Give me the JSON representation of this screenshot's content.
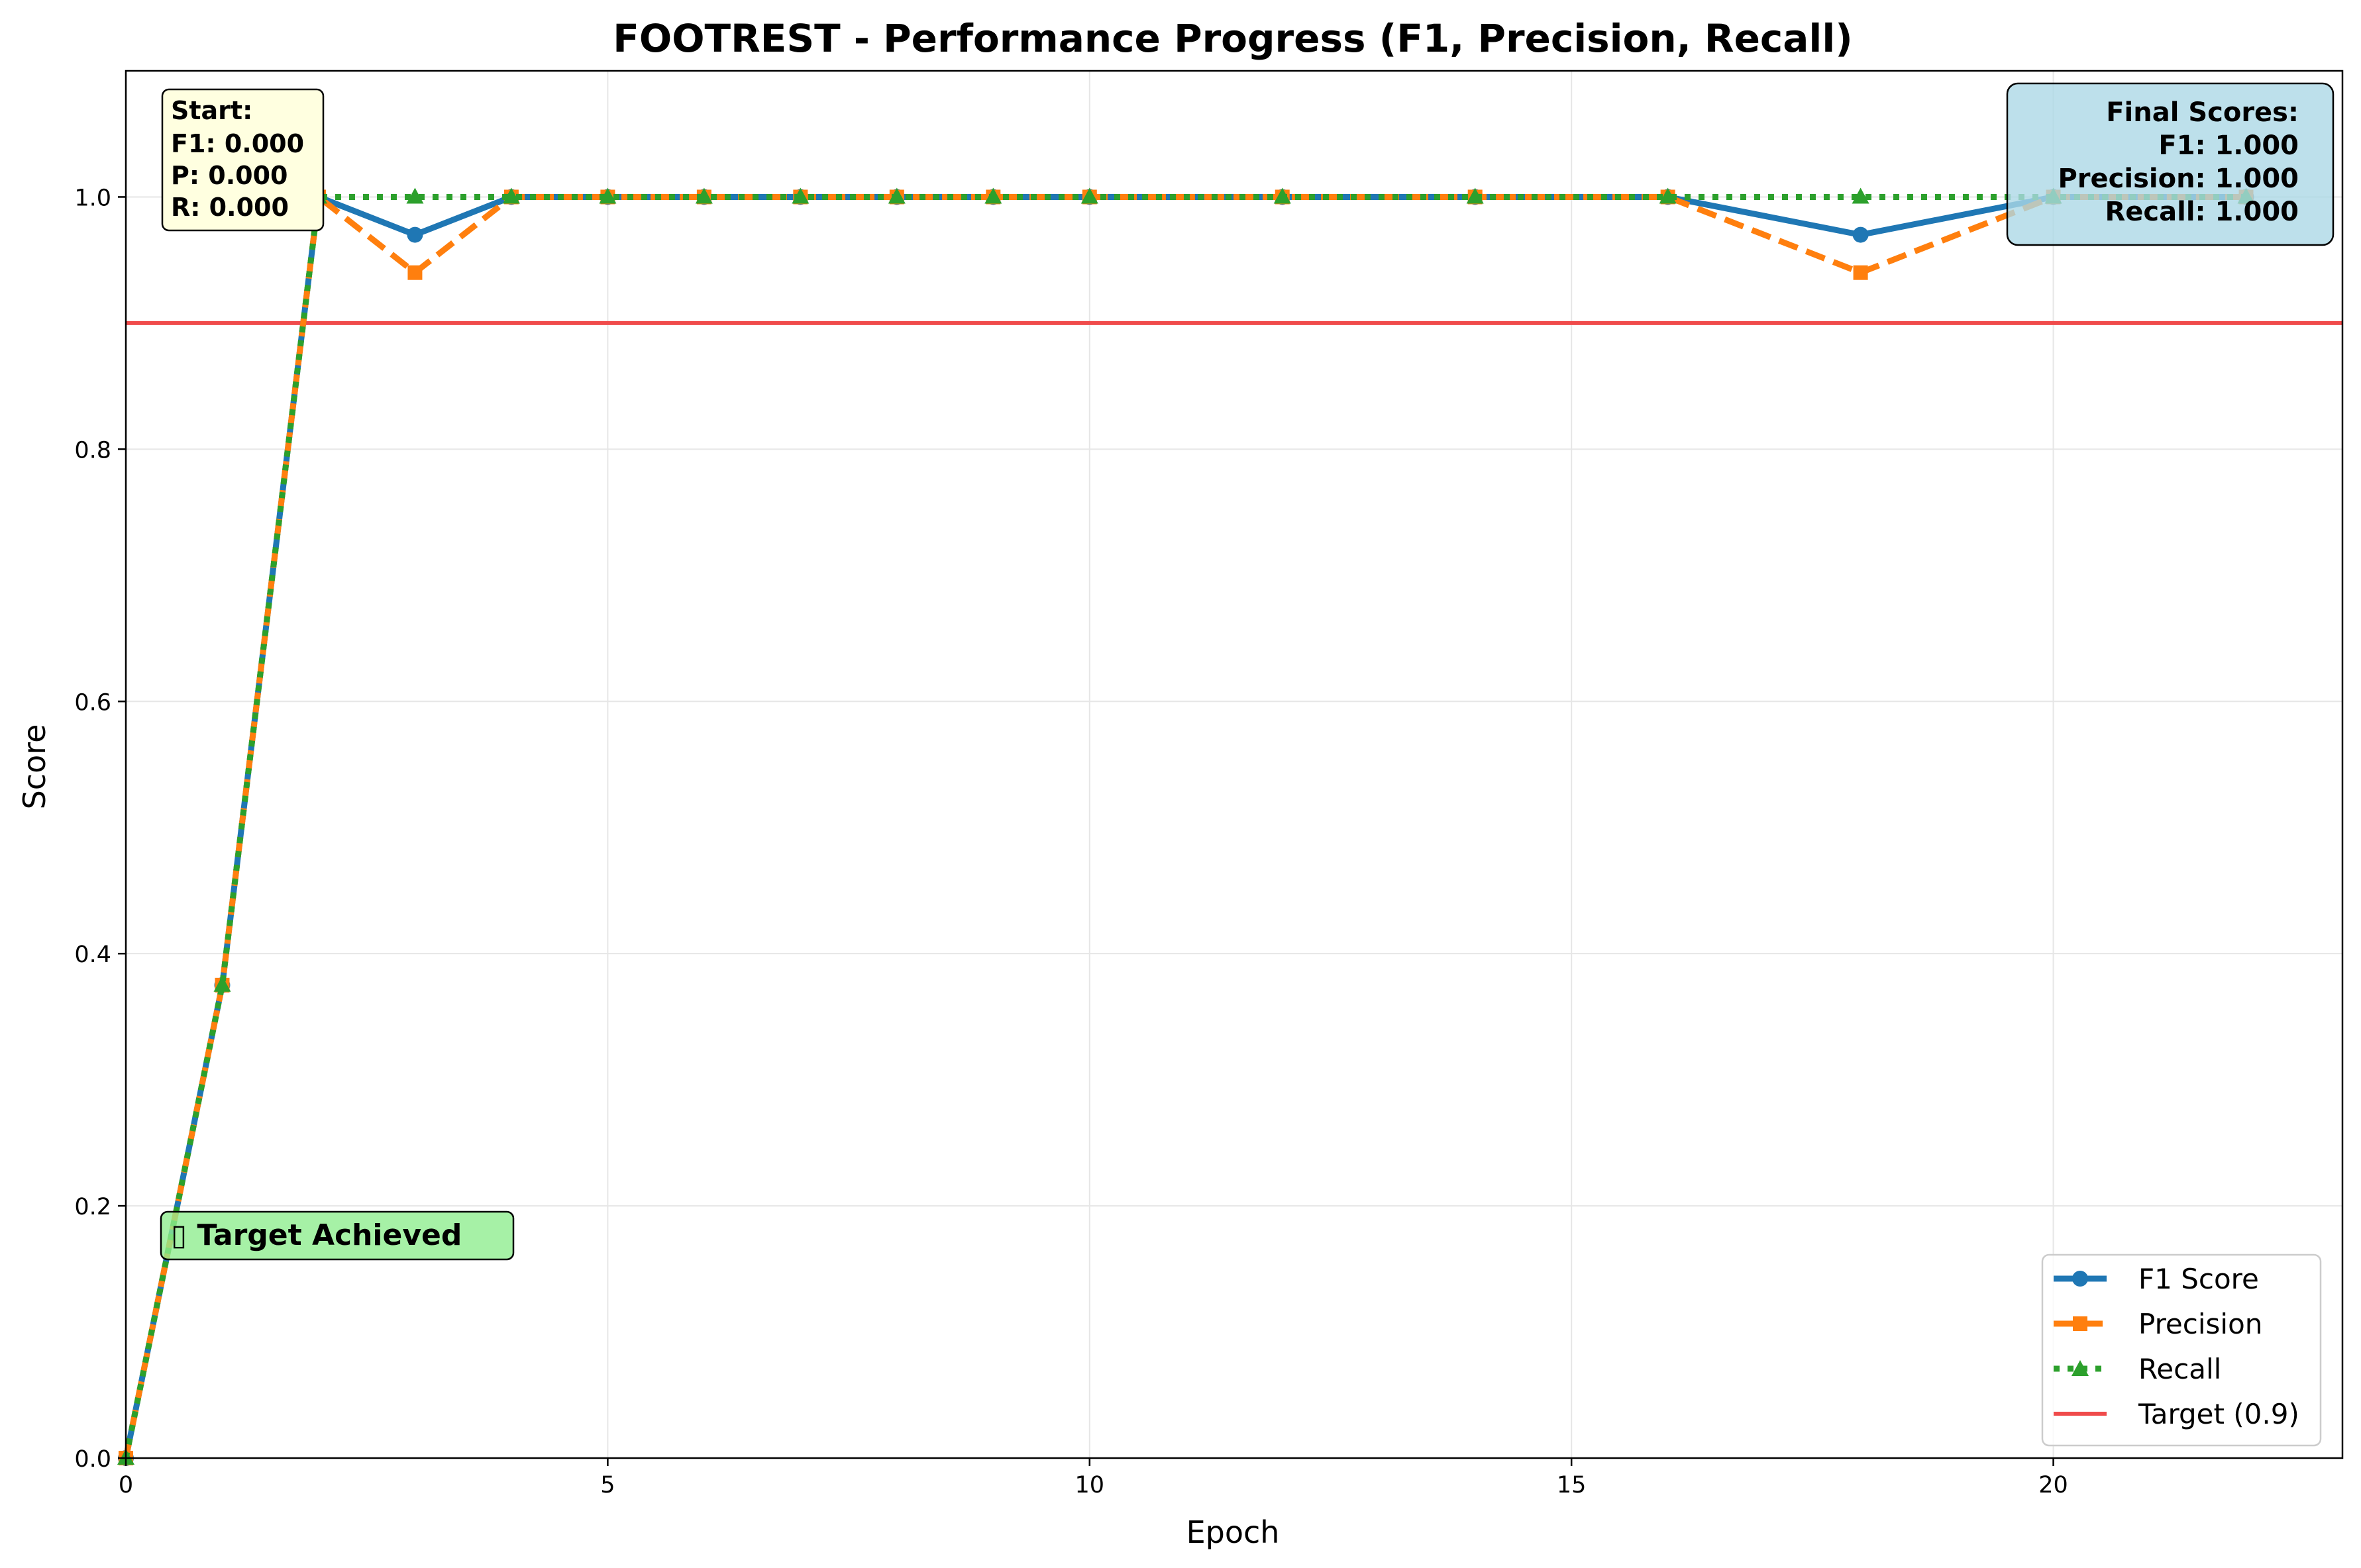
{
  "chart_data": {
    "type": "line",
    "title": "FOOTREST - Performance Progress (F1, Precision, Recall)",
    "xlabel": "Epoch",
    "ylabel": "Score",
    "xlim": [
      0,
      23
    ],
    "ylim": [
      0,
      1.1
    ],
    "x_ticks": [
      0,
      5,
      10,
      15,
      20
    ],
    "y_ticks": [
      0.0,
      0.2,
      0.4,
      0.6,
      0.8,
      1.0
    ],
    "grid": true,
    "legend_position": "lower-right",
    "x": [
      0,
      1,
      2,
      3,
      4,
      5,
      6,
      7,
      8,
      9,
      10,
      12,
      14,
      16,
      18,
      20,
      22
    ],
    "series": [
      {
        "name": "F1 Score",
        "color": "#1f77b4",
        "marker": "circle",
        "linestyle": "solid",
        "values": [
          0.0,
          0.375,
          1.0,
          0.97,
          1.0,
          1.0,
          1.0,
          1.0,
          1.0,
          1.0,
          1.0,
          1.0,
          1.0,
          1.0,
          0.97,
          1.0,
          1.0
        ]
      },
      {
        "name": "Precision",
        "color": "#ff7f0e",
        "marker": "square",
        "linestyle": "dashed",
        "values": [
          0.0,
          0.375,
          1.0,
          0.94,
          1.0,
          1.0,
          1.0,
          1.0,
          1.0,
          1.0,
          1.0,
          1.0,
          1.0,
          1.0,
          0.94,
          1.0,
          1.0
        ]
      },
      {
        "name": "Recall",
        "color": "#2ca02c",
        "marker": "triangle",
        "linestyle": "dotted",
        "values": [
          0.0,
          0.375,
          1.0,
          1.0,
          1.0,
          1.0,
          1.0,
          1.0,
          1.0,
          1.0,
          1.0,
          1.0,
          1.0,
          1.0,
          1.0,
          1.0,
          1.0
        ]
      }
    ],
    "target": {
      "name": "Target (0.9)",
      "value": 0.9,
      "color": "#f04b4b"
    },
    "annotations": {
      "start": [
        "Start:",
        "F1: 0.000",
        "P: 0.000",
        "R: 0.000"
      ],
      "final": [
        "Final Scores:",
        "F1: 1.000",
        "Precision: 1.000",
        "Recall: 1.000"
      ],
      "achieved": "▯ Target Achieved"
    }
  }
}
